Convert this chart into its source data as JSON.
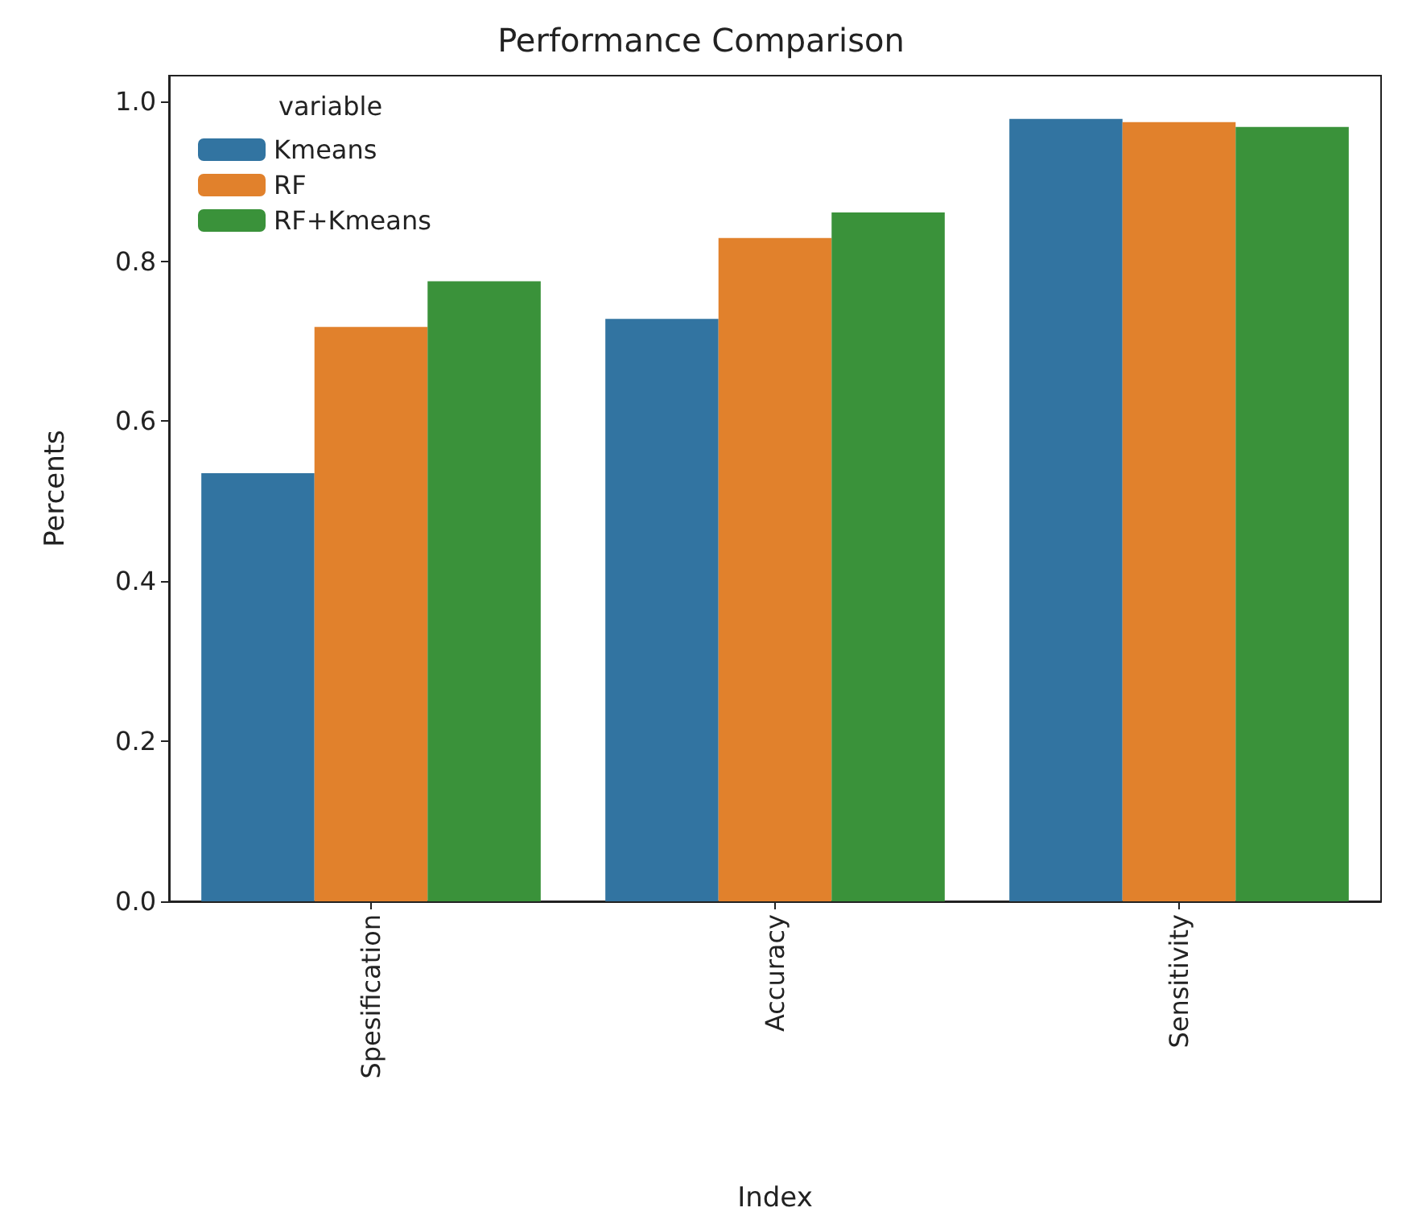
{
  "chart_data": {
    "type": "bar",
    "title": "Performance Comparison",
    "xlabel": "Index",
    "ylabel": "Percents",
    "legend_title": "variable",
    "categories": [
      "Spesification",
      "Accuracy",
      "Sensitivity"
    ],
    "series": [
      {
        "name": "Kmeans",
        "color": "#3274a1",
        "values": [
          0.535,
          0.728,
          0.978
        ]
      },
      {
        "name": "RF",
        "color": "#e1812c",
        "values": [
          0.718,
          0.829,
          0.974
        ]
      },
      {
        "name": "RF+Kmeans",
        "color": "#3a923a",
        "values": [
          0.775,
          0.861,
          0.968
        ]
      }
    ],
    "ylim": [
      0,
      1.032
    ],
    "yticks": [
      {
        "value": 0,
        "label": "0.0"
      },
      0.2,
      0.4,
      0.6,
      0.8,
      {
        "value": 1,
        "label": "1.0"
      }
    ],
    "grid": false,
    "legend": "top left"
  }
}
